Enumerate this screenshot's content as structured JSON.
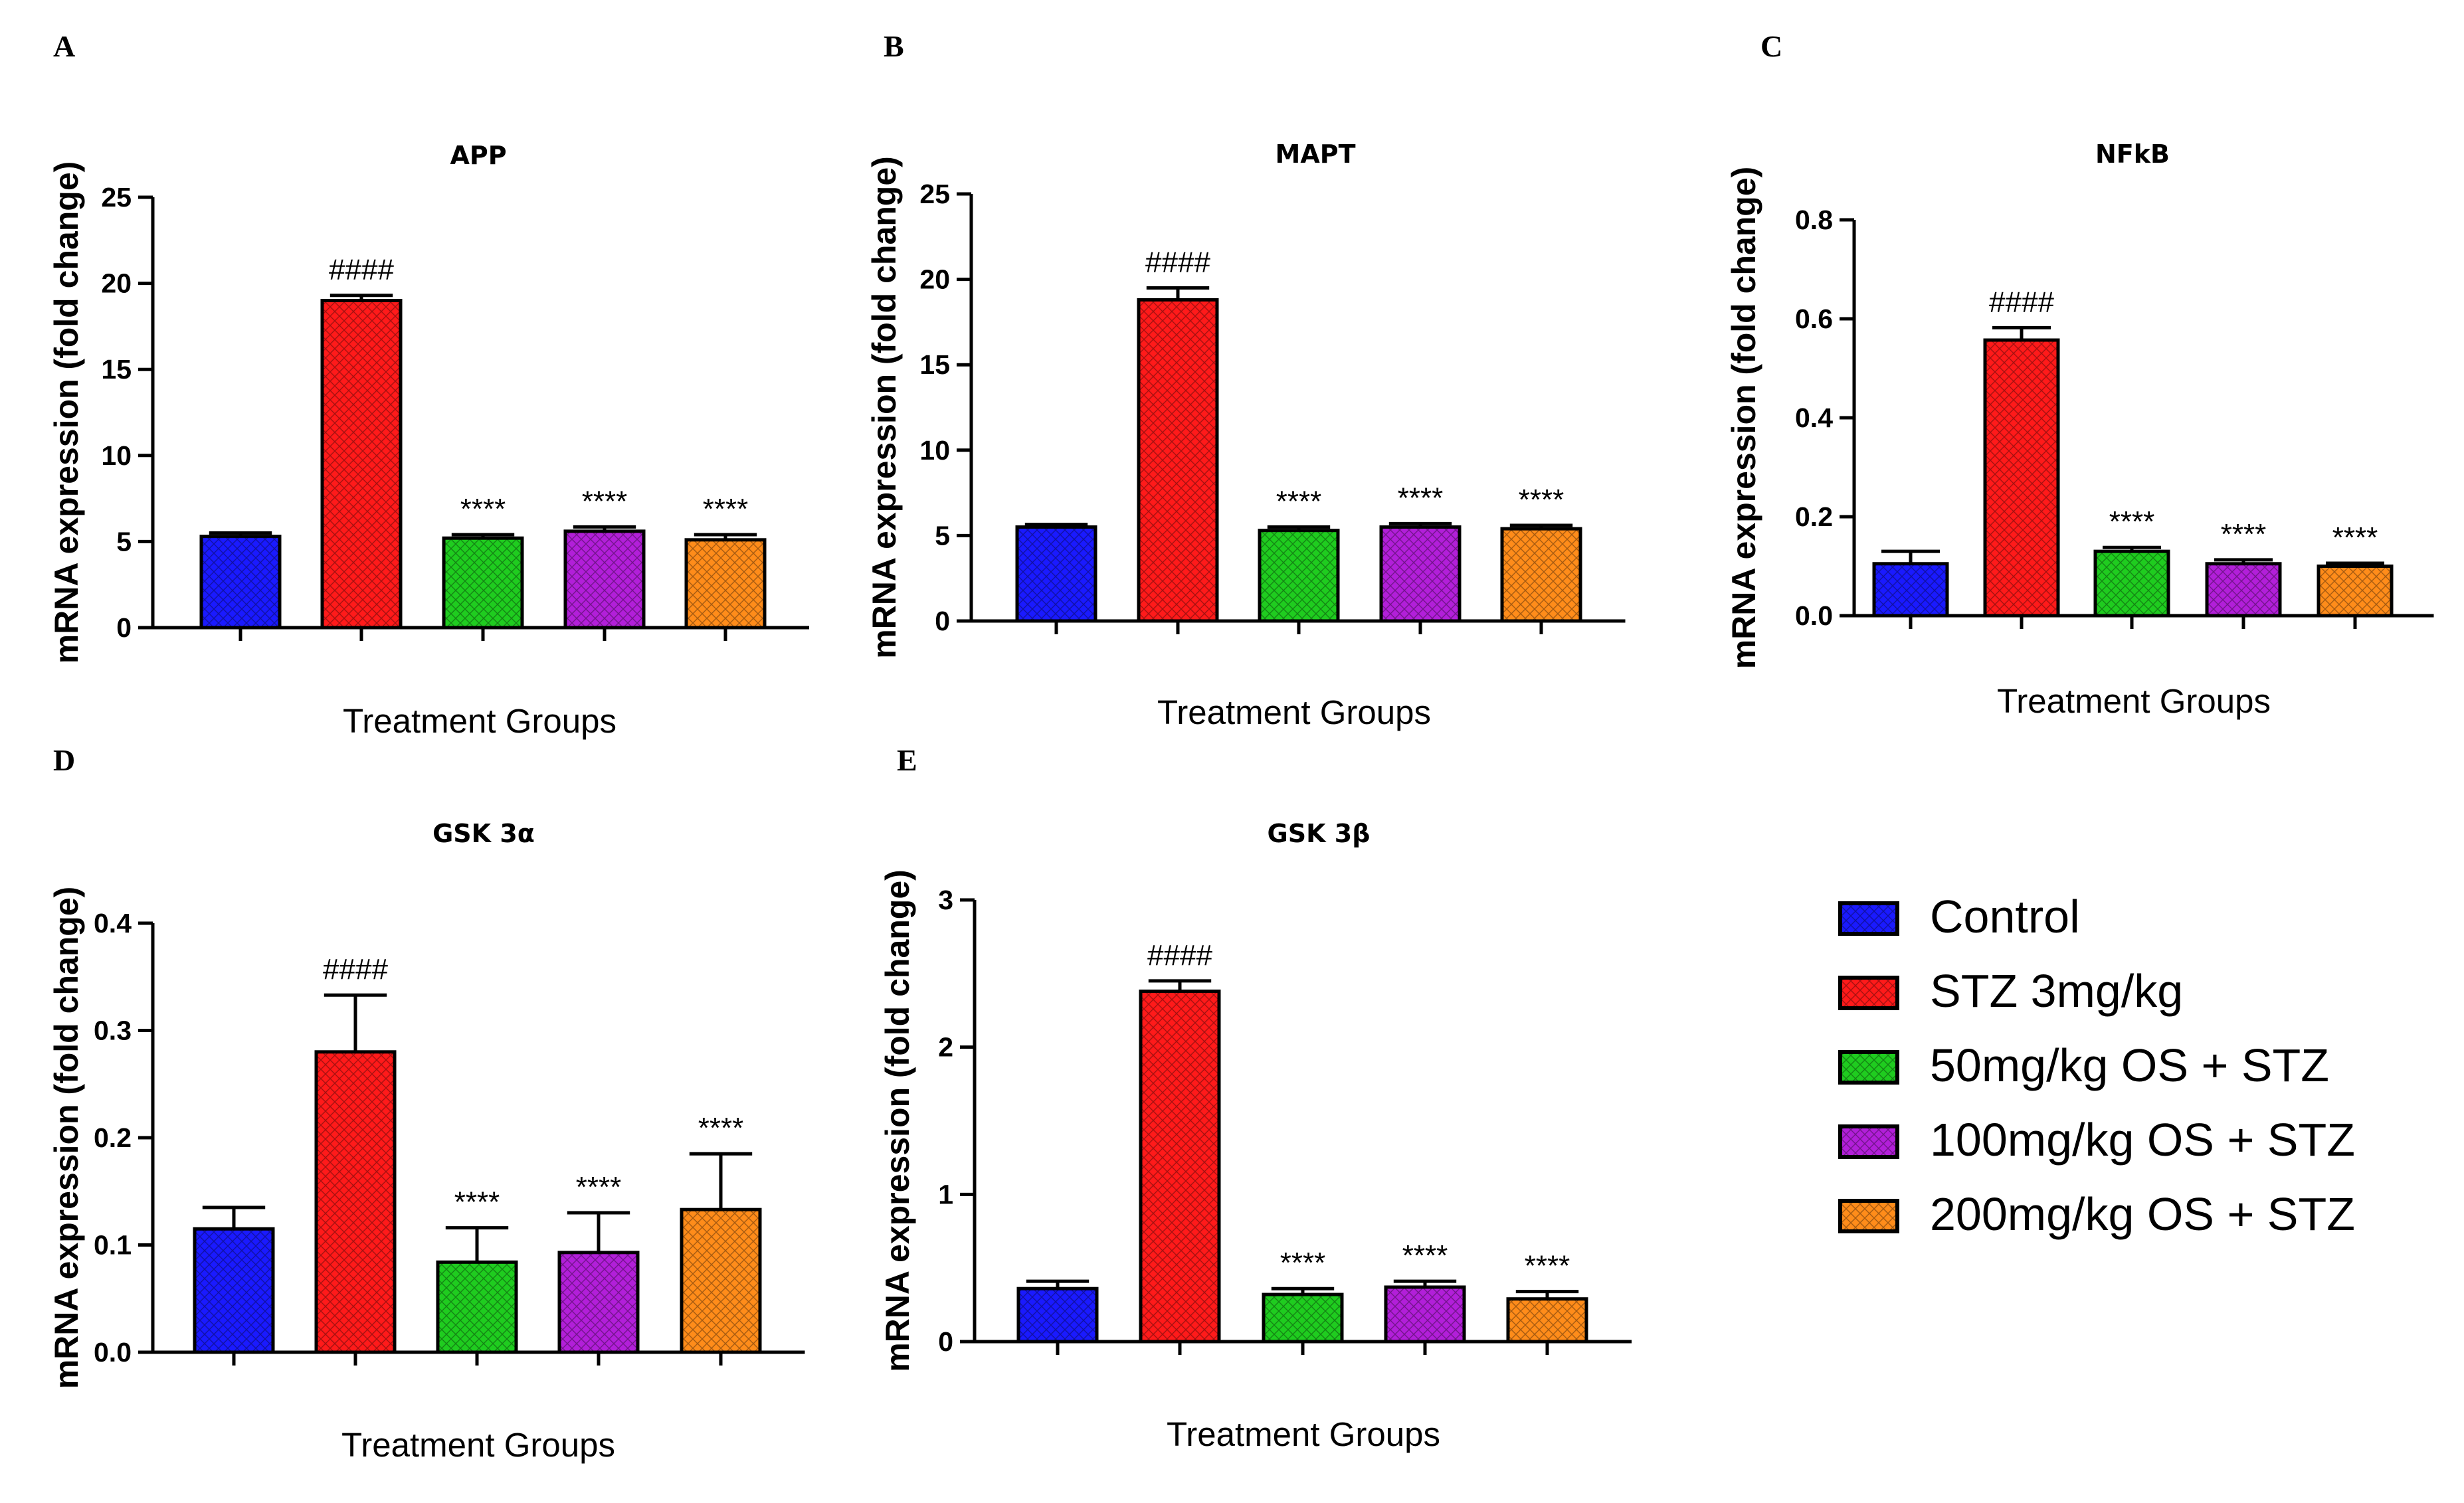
{
  "legend": [
    {
      "name": "Control",
      "color": "#1a1aff"
    },
    {
      "name": "STZ 3mg/kg",
      "color": "#ff1a1a"
    },
    {
      "name": "50mg/kg OS + STZ",
      "color": "#1fcc1f"
    },
    {
      "name": "100mg/kg OS + STZ",
      "color": "#b21fd9"
    },
    {
      "name": "200mg/kg OS + STZ",
      "color": "#ff8c1a"
    }
  ],
  "chart_data": [
    {
      "panel": "A",
      "type": "bar",
      "title": "APP",
      "xlabel": "Treatment Groups",
      "ylabel": "mRNA expression (fold change)",
      "ylim": [
        0,
        25
      ],
      "yticks": [
        0,
        5,
        10,
        15,
        20,
        25
      ],
      "tick_format": "int",
      "categories": [
        "Control",
        "STZ 3mg/kg",
        "50mg/kg OS + STZ",
        "100mg/kg OS + STZ",
        "200mg/kg OS + STZ"
      ],
      "values": [
        5.3,
        19.0,
        5.2,
        5.6,
        5.1
      ],
      "errors": [
        0.2,
        0.3,
        0.2,
        0.25,
        0.3
      ],
      "significance": [
        "",
        "####",
        "****",
        "****",
        "****"
      ]
    },
    {
      "panel": "B",
      "type": "bar",
      "title": "MAPT",
      "xlabel": "Treatment Groups",
      "ylabel": "mRNA expression (fold change)",
      "ylim": [
        0,
        25
      ],
      "yticks": [
        0,
        5,
        10,
        15,
        20,
        25
      ],
      "tick_format": "int",
      "categories": [
        "Control",
        "STZ 3mg/kg",
        "50mg/kg OS + STZ",
        "100mg/kg OS + STZ",
        "200mg/kg OS + STZ"
      ],
      "values": [
        5.5,
        18.8,
        5.3,
        5.5,
        5.4
      ],
      "errors": [
        0.15,
        0.7,
        0.2,
        0.2,
        0.2
      ],
      "significance": [
        "",
        "####",
        "****",
        "****",
        "****"
      ]
    },
    {
      "panel": "C",
      "type": "bar",
      "title": "NFkB",
      "xlabel": "Treatment Groups",
      "ylabel": "mRNA expression (fold change)",
      "ylim": [
        0,
        0.8
      ],
      "yticks": [
        0,
        0.2,
        0.4,
        0.6,
        0.8
      ],
      "tick_format": "1dp",
      "categories": [
        "Control",
        "STZ 3mg/kg",
        "50mg/kg OS + STZ",
        "100mg/kg OS + STZ",
        "200mg/kg OS + STZ"
      ],
      "values": [
        0.105,
        0.557,
        0.13,
        0.105,
        0.1
      ],
      "errors": [
        0.025,
        0.025,
        0.008,
        0.008,
        0.006
      ],
      "significance": [
        "",
        "####",
        "****",
        "****",
        "****"
      ]
    },
    {
      "panel": "D",
      "type": "bar",
      "title": "GSK 3α",
      "xlabel": "Treatment Groups",
      "ylabel": "mRNA expression (fold change)",
      "ylim": [
        0,
        0.4
      ],
      "yticks": [
        0,
        0.1,
        0.2,
        0.3,
        0.4
      ],
      "tick_format": "1dp",
      "categories": [
        "Control",
        "STZ 3mg/kg",
        "50mg/kg OS + STZ",
        "100mg/kg OS + STZ",
        "200mg/kg OS + STZ"
      ],
      "values": [
        0.115,
        0.28,
        0.084,
        0.093,
        0.133
      ],
      "errors": [
        0.02,
        0.053,
        0.032,
        0.037,
        0.052
      ],
      "significance": [
        "",
        "####",
        "****",
        "****",
        "****"
      ]
    },
    {
      "panel": "E",
      "type": "bar",
      "title": "GSK 3β",
      "xlabel": "Treatment Groups",
      "ylabel": "mRNA expression (fold change)",
      "ylim": [
        0,
        3
      ],
      "yticks": [
        0,
        1,
        2,
        3
      ],
      "tick_format": "int",
      "categories": [
        "Control",
        "STZ 3mg/kg",
        "50mg/kg OS + STZ",
        "100mg/kg OS + STZ",
        "200mg/kg OS + STZ"
      ],
      "values": [
        0.36,
        2.38,
        0.32,
        0.37,
        0.29
      ],
      "errors": [
        0.05,
        0.07,
        0.04,
        0.04,
        0.05
      ],
      "significance": [
        "",
        "####",
        "****",
        "****",
        "****"
      ]
    }
  ]
}
